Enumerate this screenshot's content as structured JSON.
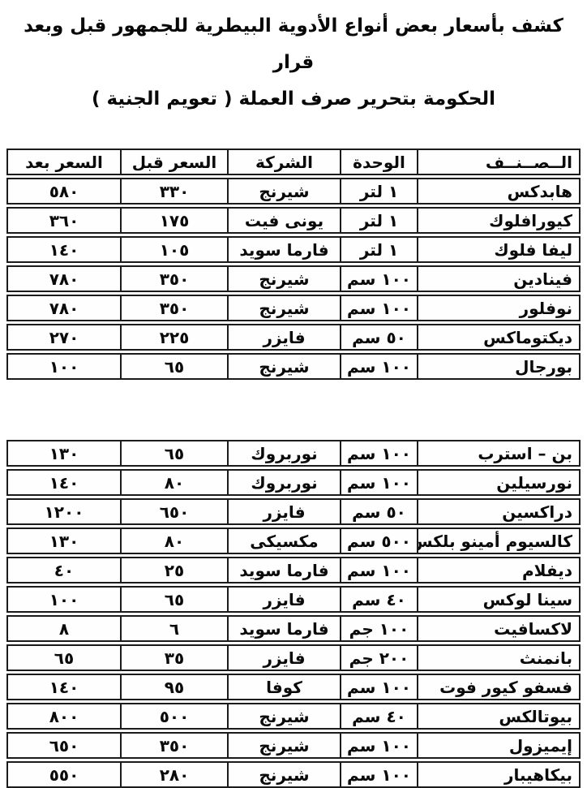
{
  "title": {
    "line1": "كشف بأسعار بعض أنواع الأدوية البيطرية للجمهور قبل وبعد قرار",
    "line2": "الحكومة بتحرير صرف العملة ( تعويم الجنية )"
  },
  "table": {
    "headers": [
      "الــصــنــف",
      "الوحدة",
      "الشركة",
      "السعر قبل",
      "السعر بعد"
    ]
  },
  "sections": [
    {
      "rows": [
        {
          "item": "هابدكس",
          "unit": "١ لتر",
          "company": "شيرنج",
          "price_before": "٣٣٠",
          "price_after": "٥٨٠"
        },
        {
          "item": "كيورافلوك",
          "unit": "١ لتر",
          "company": "يونى فيت",
          "price_before": "١٧٥",
          "price_after": "٣٦٠"
        },
        {
          "item": "ليفا فلوك",
          "unit": "١ لتر",
          "company": "فارما سويد",
          "price_before": "١٠٥",
          "price_after": "١٤٠"
        },
        {
          "item": "فينادين",
          "unit": "١٠٠ سم",
          "company": "شيرنج",
          "price_before": "٣٥٠",
          "price_after": "٧٨٠"
        },
        {
          "item": "نوفلور",
          "unit": "١٠٠ سم",
          "company": "شيرنج",
          "price_before": "٣٥٠",
          "price_after": "٧٨٠"
        },
        {
          "item": "ديكتوماكس",
          "unit": "٥٠ سم",
          "company": "فايزر",
          "price_before": "٢٢٥",
          "price_after": "٢٧٠"
        },
        {
          "item": "بورجال",
          "unit": "١٠٠ سم",
          "company": "شيرنج",
          "price_before": "٦٥",
          "price_after": "١٠٠"
        }
      ]
    },
    {
      "rows": [
        {
          "item": "بن – استرب",
          "unit": "١٠٠ سم",
          "company": "نوربروك",
          "price_before": "٦٥",
          "price_after": "١٣٠"
        },
        {
          "item": "نورسيلين",
          "unit": "١٠٠ سم",
          "company": "نوربروك",
          "price_before": "٨٠",
          "price_after": "١٤٠"
        },
        {
          "item": "دراكسين",
          "unit": "٥٠ سم",
          "company": "فايزر",
          "price_before": "٦٥٠",
          "price_after": "١٢٠٠"
        },
        {
          "item": "كالسيوم أمينو بلكس",
          "unit": "٥٠٠ سم",
          "company": "مكسيكى",
          "price_before": "٨٠",
          "price_after": "١٣٠"
        },
        {
          "item": "ديفلام",
          "unit": "١٠٠ سم",
          "company": "فارما سويد",
          "price_before": "٢٥",
          "price_after": "٤٠"
        },
        {
          "item": "سينا لوكس",
          "unit": "٤٠ سم",
          "company": "فايزر",
          "price_before": "٦٥",
          "price_after": "١٠٠"
        },
        {
          "item": "لاكسافيت",
          "unit": "١٠٠ جم",
          "company": "فارما سويد",
          "price_before": "٦",
          "price_after": "٨"
        },
        {
          "item": "بانمنث",
          "unit": "٢٠٠ جم",
          "company": "فايزر",
          "price_before": "٣٥",
          "price_after": "٦٥"
        },
        {
          "item": "فسفو كيور فوت",
          "unit": "١٠٠ سم",
          "company": "كوفا",
          "price_before": "٩٥",
          "price_after": "١٤٠"
        },
        {
          "item": "بيوتالكس",
          "unit": "٤٠ سم",
          "company": "شيرنج",
          "price_before": "٥٠٠",
          "price_after": "٨٠٠"
        },
        {
          "item": "إيميزول",
          "unit": "١٠٠ سم",
          "company": "شيرنج",
          "price_before": "٣٥٠",
          "price_after": "٦٥٠"
        },
        {
          "item": "بيكاهيبار",
          "unit": "١٠٠ سم",
          "company": "شيرنج",
          "price_before": "٢٨٠",
          "price_after": "٥٥٠"
        }
      ]
    }
  ],
  "colors": {
    "text": "#0a0a0a",
    "border": "#1b1b1b",
    "background": "#ffffff"
  }
}
